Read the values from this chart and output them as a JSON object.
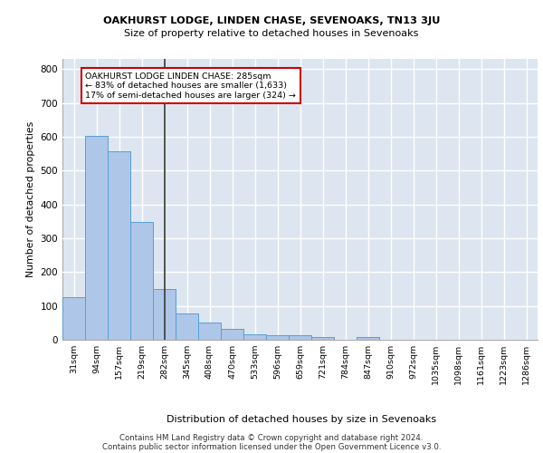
{
  "title1": "OAKHURST LODGE, LINDEN CHASE, SEVENOAKS, TN13 3JU",
  "title2": "Size of property relative to detached houses in Sevenoaks",
  "xlabel": "Distribution of detached houses by size in Sevenoaks",
  "ylabel": "Number of detached properties",
  "categories": [
    "31sqm",
    "94sqm",
    "157sqm",
    "219sqm",
    "282sqm",
    "345sqm",
    "408sqm",
    "470sqm",
    "533sqm",
    "596sqm",
    "659sqm",
    "721sqm",
    "784sqm",
    "847sqm",
    "910sqm",
    "972sqm",
    "1035sqm",
    "1098sqm",
    "1161sqm",
    "1223sqm",
    "1286sqm"
  ],
  "values": [
    125,
    602,
    557,
    348,
    150,
    77,
    52,
    32,
    15,
    13,
    13,
    7,
    0,
    8,
    0,
    0,
    0,
    0,
    0,
    0,
    0
  ],
  "bar_color": "#aec6e8",
  "bar_edge_color": "#5a9fd4",
  "bg_color": "#dde6f0",
  "grid_color": "#ffffff",
  "vline_x_index": 4,
  "vline_color": "#444444",
  "annotation_line1": "OAKHURST LODGE LINDEN CHASE: 285sqm",
  "annotation_line2": "← 83% of detached houses are smaller (1,633)",
  "annotation_line3": "17% of semi-detached houses are larger (324) →",
  "annotation_box_edge_color": "#cc0000",
  "footer_line1": "Contains HM Land Registry data © Crown copyright and database right 2024.",
  "footer_line2": "Contains public sector information licensed under the Open Government Licence v3.0.",
  "ylim": [
    0,
    830
  ],
  "yticks": [
    0,
    100,
    200,
    300,
    400,
    500,
    600,
    700,
    800
  ]
}
